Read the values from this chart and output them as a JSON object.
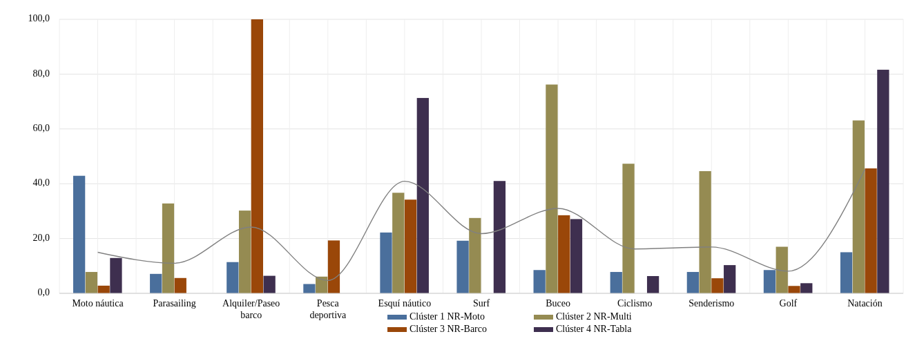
{
  "chart_data": {
    "type": "bar",
    "categories": [
      "Moto náutica",
      "Parasailing",
      "Alquiler/Paseo barco",
      "Pesca deportiva",
      "Esquí náutico",
      "Surf",
      "Buceo",
      "Ciclismo",
      "Senderismo",
      "Golf",
      "Natación"
    ],
    "series": [
      {
        "name": "Clúster 1 NR-Moto",
        "color": "#4a6f9c",
        "values": [
          42.9,
          7.1,
          11.4,
          3.4,
          22.2,
          19.2,
          8.5,
          7.8,
          7.8,
          8.5,
          15.0
        ]
      },
      {
        "name": "Clúster 2 NR-Multi",
        "color": "#958b52",
        "values": [
          7.8,
          32.8,
          30.2,
          6.1,
          36.7,
          27.5,
          76.2,
          47.3,
          44.6,
          17.0,
          63.1
        ]
      },
      {
        "name": "Clúster 3 NR-Barco",
        "color": "#9a4709",
        "values": [
          2.8,
          5.6,
          100.0,
          19.3,
          34.2,
          null,
          28.5,
          null,
          5.5,
          2.7,
          45.6
        ]
      },
      {
        "name": "Clúster 4 NR-Tabla",
        "color": "#3e2f4f",
        "values": [
          12.9,
          null,
          6.4,
          null,
          71.3,
          41.0,
          27.1,
          6.3,
          10.3,
          3.7,
          81.6
        ]
      },
      {
        "type": "line",
        "color": "#808080",
        "values": [
          15.0,
          11.0,
          24.2,
          4.7,
          40.9,
          21.8,
          31.0,
          16.2,
          16.9,
          8.1,
          45.2
        ]
      }
    ],
    "ylim": [
      0,
      100
    ],
    "yticks": [
      {
        "value": 0,
        "label": "0,0"
      },
      {
        "value": 20,
        "label": "20,0"
      },
      {
        "value": 40,
        "label": "40,0"
      },
      {
        "value": 60,
        "label": "60,0"
      },
      {
        "value": 80,
        "label": "80,0"
      },
      {
        "value": 100,
        "label": "100,0"
      }
    ],
    "grid": true,
    "legend": "bottom"
  }
}
